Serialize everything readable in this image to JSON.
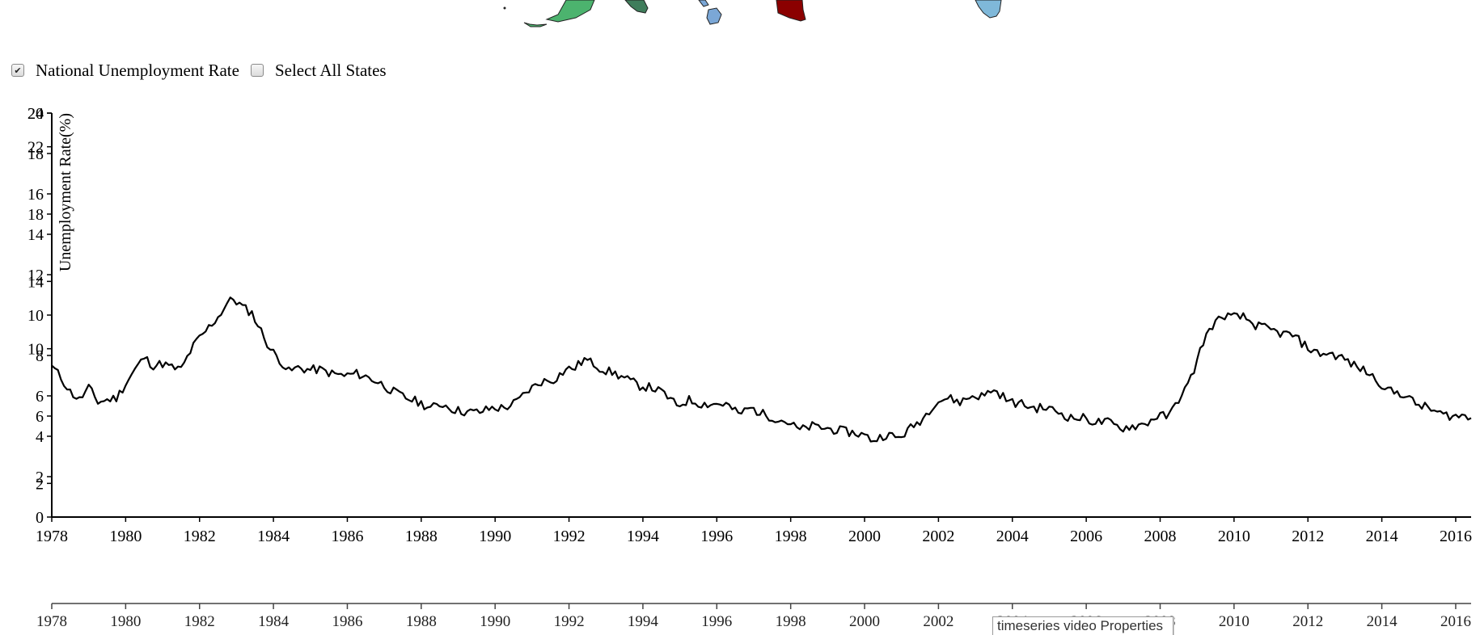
{
  "map": {
    "region_colors": [
      "#4cb36e",
      "#3f7d5b",
      "#7ba7d6",
      "#8b0000",
      "#7fb8d9"
    ]
  },
  "controls": {
    "national_checked": true,
    "national_label": "National Unemployment Rate",
    "all_states_checked": false,
    "all_states_label": "Select All States"
  },
  "status": {
    "props_label": "timeseries video Properties"
  },
  "chart_data": {
    "type": "line",
    "ylabel": "Unemployment Rate(%)",
    "line_color": "#000000",
    "x_range": [
      "1978-01",
      "2016-06"
    ],
    "x_ticks": [
      "1978",
      "1980",
      "1982",
      "1984",
      "1986",
      "1988",
      "1990",
      "1992",
      "1994",
      "1996",
      "1998",
      "2000",
      "2002",
      "2004",
      "2006",
      "2008",
      "2010",
      "2012",
      "2014",
      "2016"
    ],
    "y_axes": [
      {
        "domain": [
          0,
          20
        ],
        "ticks": [
          0,
          2,
          4,
          6,
          8,
          10,
          12,
          14,
          16,
          18,
          20
        ]
      },
      {
        "domain": [
          0,
          24
        ],
        "ticks": [
          2,
          6,
          10,
          14,
          18,
          22,
          24
        ]
      }
    ],
    "context_axis_ticks": [
      "1978",
      "1980",
      "1982",
      "1984",
      "1986",
      "1988",
      "1990",
      "1992",
      "1994",
      "1996",
      "1998",
      "2000",
      "2002",
      "2004",
      "2006",
      "2008",
      "2010",
      "2012",
      "2014",
      "2016"
    ],
    "series": [
      {
        "points": [
          [
            "1978-01",
            7.5
          ],
          [
            "1978-04",
            6.9
          ],
          [
            "1978-07",
            6.2
          ],
          [
            "1978-10",
            5.8
          ],
          [
            "1979-01",
            6.4
          ],
          [
            "1979-04",
            5.7
          ],
          [
            "1979-07",
            5.8
          ],
          [
            "1979-10",
            5.9
          ],
          [
            "1980-01",
            6.6
          ],
          [
            "1980-04",
            7.3
          ],
          [
            "1980-07",
            7.9
          ],
          [
            "1980-10",
            7.5
          ],
          [
            "1981-01",
            7.6
          ],
          [
            "1981-04",
            7.4
          ],
          [
            "1981-07",
            7.3
          ],
          [
            "1981-10",
            8.2
          ],
          [
            "1981-12",
            8.7
          ],
          [
            "1982-02",
            9.0
          ],
          [
            "1982-04",
            9.4
          ],
          [
            "1982-07",
            9.9
          ],
          [
            "1982-10",
            10.6
          ],
          [
            "1982-12",
            10.8
          ],
          [
            "1983-03",
            10.4
          ],
          [
            "1983-06",
            10.1
          ],
          [
            "1983-09",
            9.2
          ],
          [
            "1983-12",
            8.3
          ],
          [
            "1984-03",
            7.8
          ],
          [
            "1984-06",
            7.2
          ],
          [
            "1984-09",
            7.4
          ],
          [
            "1984-12",
            7.3
          ],
          [
            "1985-04",
            7.3
          ],
          [
            "1985-08",
            7.1
          ],
          [
            "1985-12",
            7.0
          ],
          [
            "1986-04",
            7.1
          ],
          [
            "1986-08",
            6.9
          ],
          [
            "1986-12",
            6.6
          ],
          [
            "1987-04",
            6.2
          ],
          [
            "1987-08",
            5.9
          ],
          [
            "1987-12",
            5.7
          ],
          [
            "1988-04",
            5.4
          ],
          [
            "1988-08",
            5.6
          ],
          [
            "1988-12",
            5.3
          ],
          [
            "1989-04",
            5.2
          ],
          [
            "1989-08",
            5.2
          ],
          [
            "1989-12",
            5.4
          ],
          [
            "1990-04",
            5.4
          ],
          [
            "1990-08",
            5.7
          ],
          [
            "1990-12",
            6.3
          ],
          [
            "1991-04",
            6.7
          ],
          [
            "1991-08",
            6.8
          ],
          [
            "1991-12",
            7.3
          ],
          [
            "1992-03",
            7.4
          ],
          [
            "1992-06",
            7.8
          ],
          [
            "1992-09",
            7.6
          ],
          [
            "1992-12",
            7.3
          ],
          [
            "1993-04",
            7.1
          ],
          [
            "1993-08",
            6.8
          ],
          [
            "1993-12",
            6.5
          ],
          [
            "1994-04",
            6.4
          ],
          [
            "1994-08",
            6.1
          ],
          [
            "1994-12",
            5.5
          ],
          [
            "1995-04",
            5.8
          ],
          [
            "1995-08",
            5.6
          ],
          [
            "1995-12",
            5.6
          ],
          [
            "1996-04",
            5.6
          ],
          [
            "1996-08",
            5.1
          ],
          [
            "1996-12",
            5.4
          ],
          [
            "1997-04",
            5.1
          ],
          [
            "1997-08",
            4.9
          ],
          [
            "1997-12",
            4.7
          ],
          [
            "1998-04",
            4.3
          ],
          [
            "1998-08",
            4.5
          ],
          [
            "1998-12",
            4.4
          ],
          [
            "1999-04",
            4.3
          ],
          [
            "1999-08",
            4.2
          ],
          [
            "1999-12",
            4.1
          ],
          [
            "2000-04",
            3.8
          ],
          [
            "2000-08",
            4.1
          ],
          [
            "2000-12",
            3.9
          ],
          [
            "2001-04",
            4.4
          ],
          [
            "2001-08",
            4.9
          ],
          [
            "2001-12",
            5.7
          ],
          [
            "2002-04",
            5.9
          ],
          [
            "2002-08",
            5.7
          ],
          [
            "2002-12",
            6.0
          ],
          [
            "2003-04",
            6.0
          ],
          [
            "2003-06",
            6.3
          ],
          [
            "2003-09",
            6.1
          ],
          [
            "2003-12",
            5.7
          ],
          [
            "2004-04",
            5.6
          ],
          [
            "2004-08",
            5.4
          ],
          [
            "2004-12",
            5.4
          ],
          [
            "2005-04",
            5.2
          ],
          [
            "2005-08",
            4.9
          ],
          [
            "2005-12",
            4.9
          ],
          [
            "2006-04",
            4.7
          ],
          [
            "2006-08",
            4.7
          ],
          [
            "2006-12",
            4.4
          ],
          [
            "2007-04",
            4.5
          ],
          [
            "2007-08",
            4.6
          ],
          [
            "2007-12",
            5.0
          ],
          [
            "2008-04",
            5.0
          ],
          [
            "2008-06",
            5.6
          ],
          [
            "2008-08",
            6.1
          ],
          [
            "2008-10",
            6.5
          ],
          [
            "2008-12",
            7.3
          ],
          [
            "2009-03",
            8.7
          ],
          [
            "2009-06",
            9.5
          ],
          [
            "2009-10",
            10.0
          ],
          [
            "2009-12",
            9.9
          ],
          [
            "2010-04",
            9.9
          ],
          [
            "2010-08",
            9.5
          ],
          [
            "2010-12",
            9.3
          ],
          [
            "2011-04",
            9.1
          ],
          [
            "2011-08",
            9.0
          ],
          [
            "2011-12",
            8.5
          ],
          [
            "2012-04",
            8.1
          ],
          [
            "2012-08",
            8.1
          ],
          [
            "2012-12",
            7.9
          ],
          [
            "2013-04",
            7.5
          ],
          [
            "2013-08",
            7.2
          ],
          [
            "2013-12",
            6.7
          ],
          [
            "2014-04",
            6.2
          ],
          [
            "2014-08",
            6.1
          ],
          [
            "2014-12",
            5.6
          ],
          [
            "2015-04",
            5.4
          ],
          [
            "2015-08",
            5.1
          ],
          [
            "2015-12",
            5.0
          ],
          [
            "2016-04",
            5.0
          ],
          [
            "2016-06",
            4.9
          ]
        ]
      }
    ]
  }
}
